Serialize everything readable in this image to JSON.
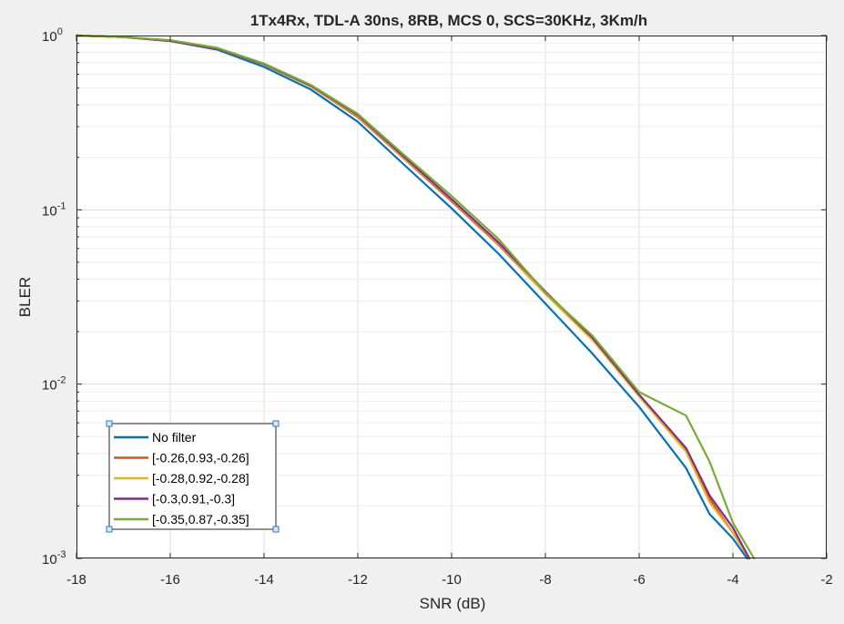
{
  "chart_data": {
    "type": "line",
    "title": "1Tx4Rx, TDL-A 30ns, 8RB, MCS 0, SCS=30KHz, 3Km/h",
    "xlabel": "SNR (dB)",
    "ylabel": "BLER",
    "xlim": [
      -18,
      -2
    ],
    "ylim": [
      0.001,
      1
    ],
    "yscale": "log",
    "grid": true,
    "x_ticks": [
      "-18",
      "-16",
      "-14",
      "-12",
      "-10",
      "-8",
      "-6",
      "-4",
      "-2"
    ],
    "y_ticks": [
      {
        "base": "10",
        "exp": "0"
      },
      {
        "base": "10",
        "exp": "-1"
      },
      {
        "base": "10",
        "exp": "-2"
      },
      {
        "base": "10",
        "exp": "-3"
      }
    ],
    "legend_position": "bottom-left",
    "series": [
      {
        "name": "No filter",
        "color": "#0072BD",
        "x": [
          -18,
          -17,
          -16,
          -15,
          -14,
          -13,
          -12,
          -11,
          -10,
          -9,
          -8,
          -7,
          -6,
          -5,
          -4.5,
          -4,
          -3.7
        ],
        "y": [
          1.0,
          0.98,
          0.93,
          0.83,
          0.66,
          0.49,
          0.32,
          0.18,
          0.102,
          0.056,
          0.029,
          0.015,
          0.0074,
          0.0033,
          0.0018,
          0.0013,
          0.001
        ]
      },
      {
        "name": "[-0.26,0.93,-0.26]",
        "color": "#D95319",
        "x": [
          -18,
          -17,
          -16,
          -15,
          -14,
          -13,
          -12,
          -11,
          -10,
          -9,
          -8,
          -7,
          -6,
          -5,
          -4.5,
          -4,
          -3.65
        ],
        "y": [
          1.0,
          0.98,
          0.93,
          0.84,
          0.68,
          0.51,
          0.34,
          0.195,
          0.112,
          0.063,
          0.033,
          0.018,
          0.0086,
          0.0042,
          0.0022,
          0.0014,
          0.001
        ]
      },
      {
        "name": "[-0.28,0.92,-0.28]",
        "color": "#EDB120",
        "x": [
          -18,
          -17,
          -16,
          -15,
          -14,
          -13,
          -12,
          -11,
          -10,
          -9,
          -8,
          -7,
          -6,
          -5,
          -4.5,
          -4,
          -3.65
        ],
        "y": [
          1.0,
          0.98,
          0.93,
          0.84,
          0.68,
          0.51,
          0.345,
          0.197,
          0.114,
          0.064,
          0.033,
          0.018,
          0.0085,
          0.0041,
          0.0021,
          0.0014,
          0.001
        ]
      },
      {
        "name": "[-0.3,0.91,-0.3]",
        "color": "#7E2F8E",
        "x": [
          -18,
          -17,
          -16,
          -15,
          -14,
          -13,
          -12,
          -11,
          -10,
          -9,
          -8,
          -7,
          -6,
          -5,
          -4.5,
          -4,
          -3.65
        ],
        "y": [
          1.0,
          0.98,
          0.93,
          0.84,
          0.685,
          0.515,
          0.35,
          0.2,
          0.115,
          0.065,
          0.034,
          0.0185,
          0.0087,
          0.0043,
          0.0023,
          0.0015,
          0.001
        ]
      },
      {
        "name": "[-0.35,0.87,-0.35]",
        "color": "#77AC30",
        "x": [
          -18,
          -17,
          -16,
          -15,
          -14,
          -13,
          -12,
          -11,
          -10,
          -9,
          -8,
          -7,
          -6,
          -5,
          -4.5,
          -4,
          -3.55
        ],
        "y": [
          1.0,
          0.98,
          0.94,
          0.85,
          0.69,
          0.52,
          0.355,
          0.205,
          0.12,
          0.068,
          0.0335,
          0.019,
          0.009,
          0.0066,
          0.0036,
          0.0016,
          0.001
        ]
      }
    ]
  }
}
